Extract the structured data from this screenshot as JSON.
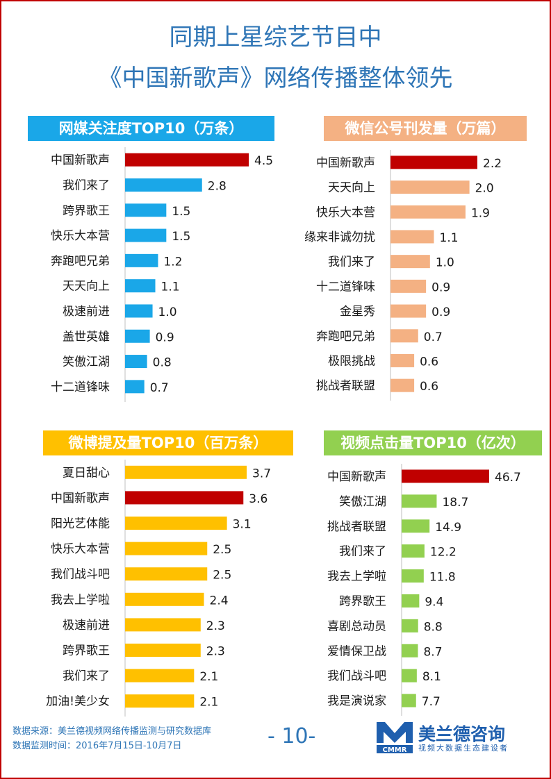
{
  "title": {
    "line1": "同期上星综艺节目中",
    "line2": "《中国新歌声》网络传播整体领先"
  },
  "colors": {
    "highlight": "#c00000",
    "panel1": "#1aa7e8",
    "panel2": "#f4b183",
    "panel3": "#ffc000",
    "panel4": "#92d050",
    "title": "#2e75b6"
  },
  "chart_data": [
    {
      "type": "bar",
      "orientation": "horizontal",
      "title": "网媒关注度TOP10（万条）",
      "categories": [
        "中国新歌声",
        "我们来了",
        "跨界歌王",
        "快乐大本营",
        "奔跑吧兄弟",
        "天天向上",
        "极速前进",
        "盖世英雄",
        "笑傲江湖",
        "十二道锋味"
      ],
      "values": [
        4.5,
        2.8,
        1.5,
        1.5,
        1.2,
        1.1,
        1.0,
        0.9,
        0.8,
        0.7
      ],
      "labels": [
        "4.5",
        "2.8",
        "1.5",
        "1.5",
        "1.2",
        "1.1",
        "1.0",
        "0.9",
        "0.8",
        "0.7"
      ],
      "highlight": "中国新歌声",
      "xlim": [
        0,
        4.5
      ]
    },
    {
      "type": "bar",
      "orientation": "horizontal",
      "title": "微信公号刊发量（万篇）",
      "categories": [
        "中国新歌声",
        "天天向上",
        "快乐大本营",
        "缘来非诚勿扰",
        "我们来了",
        "十二道锋味",
        "金星秀",
        "奔跑吧兄弟",
        "极限挑战",
        "挑战者联盟"
      ],
      "values": [
        2.2,
        2.0,
        1.9,
        1.1,
        1.0,
        0.9,
        0.9,
        0.7,
        0.6,
        0.6
      ],
      "labels": [
        "2.2",
        "2.0",
        "1.9",
        "1.1",
        "1.0",
        "0.9",
        "0.9",
        "0.7",
        "0.6",
        "0.6"
      ],
      "highlight": "中国新歌声",
      "xlim": [
        0,
        2.2
      ]
    },
    {
      "type": "bar",
      "orientation": "horizontal",
      "title": "微博提及量TOP10（百万条）",
      "categories": [
        "夏日甜心",
        "中国新歌声",
        "阳光艺体能",
        "快乐大本营",
        "我们战斗吧",
        "我去上学啦",
        "极速前进",
        "跨界歌王",
        "我们来了",
        "加油!美少女"
      ],
      "values": [
        3.7,
        3.6,
        3.1,
        2.5,
        2.5,
        2.4,
        2.3,
        2.3,
        2.1,
        2.1
      ],
      "labels": [
        "3.7",
        "3.6",
        "3.1",
        "2.5",
        "2.5",
        "2.4",
        "2.3",
        "2.3",
        "2.1",
        "2.1"
      ],
      "highlight": "中国新歌声",
      "xlim": [
        0,
        3.7
      ]
    },
    {
      "type": "bar",
      "orientation": "horizontal",
      "title": "视频点击量TOP10（亿次）",
      "categories": [
        "中国新歌声",
        "笑傲江湖",
        "挑战者联盟",
        "我们来了",
        "我去上学啦",
        "跨界歌王",
        "喜剧总动员",
        "爱情保卫战",
        "我们战斗吧",
        "我是演说家"
      ],
      "values": [
        46.7,
        18.7,
        14.9,
        12.2,
        11.8,
        9.4,
        8.8,
        8.7,
        8.1,
        7.7
      ],
      "labels": [
        "46.7",
        "18.7",
        "14.9",
        "12.2",
        "11.8",
        "9.4",
        "8.8",
        "8.7",
        "8.1",
        "7.7"
      ],
      "highlight": "中国新歌声",
      "xlim": [
        0,
        46.7
      ]
    }
  ],
  "footer": {
    "source": "数据来源：美兰德视频网络传播监测与研究数据库",
    "period": "数据监测时间：2016年7月15日-10月7日",
    "page": "- 10-"
  },
  "logo": {
    "name": "美兰德咨询",
    "tagline": "视频大数据生态建设者",
    "mark": "CMMR"
  }
}
